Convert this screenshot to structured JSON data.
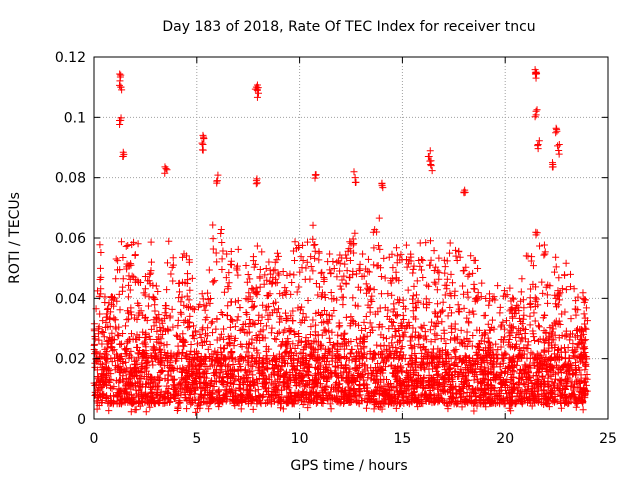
{
  "chart_data": {
    "type": "scatter",
    "title": "Day 183 of 2018, Rate Of TEC Index for receiver tncu",
    "xlabel": "GPS time / hours",
    "ylabel": "ROTI / TECUs",
    "xlim": [
      0,
      25
    ],
    "ylim": [
      0,
      0.12
    ],
    "xticks": [
      0,
      5,
      10,
      15,
      20,
      25
    ],
    "xtick_labels": [
      "0",
      "5",
      "10",
      "15",
      "20",
      "25"
    ],
    "yticks": [
      0,
      0.02,
      0.04,
      0.06,
      0.08,
      0.1,
      0.12
    ],
    "ytick_labels": [
      "0",
      "0.02",
      "0.04",
      "0.06",
      "0.08",
      "0.1",
      "0.12"
    ],
    "grid": true,
    "marker": "+",
    "color": "#ff0000",
    "data_x_range": [
      0,
      24
    ],
    "baseline_band": [
      0.005,
      0.02
    ],
    "notable_peaks": [
      {
        "x": 1.3,
        "y": 0.114
      },
      {
        "x": 1.3,
        "y": 0.11
      },
      {
        "x": 1.3,
        "y": 0.099
      },
      {
        "x": 1.4,
        "y": 0.087
      },
      {
        "x": 3.5,
        "y": 0.083
      },
      {
        "x": 5.3,
        "y": 0.094
      },
      {
        "x": 5.3,
        "y": 0.091
      },
      {
        "x": 6.0,
        "y": 0.079
      },
      {
        "x": 7.9,
        "y": 0.11
      },
      {
        "x": 8.0,
        "y": 0.108
      },
      {
        "x": 7.9,
        "y": 0.079
      },
      {
        "x": 10.8,
        "y": 0.081
      },
      {
        "x": 12.7,
        "y": 0.08
      },
      {
        "x": 14.0,
        "y": 0.078
      },
      {
        "x": 16.3,
        "y": 0.087
      },
      {
        "x": 16.4,
        "y": 0.084
      },
      {
        "x": 18.0,
        "y": 0.075
      },
      {
        "x": 21.5,
        "y": 0.115
      },
      {
        "x": 21.5,
        "y": 0.113
      },
      {
        "x": 21.5,
        "y": 0.102
      },
      {
        "x": 21.6,
        "y": 0.091
      },
      {
        "x": 22.5,
        "y": 0.096
      },
      {
        "x": 22.6,
        "y": 0.089
      },
      {
        "x": 22.3,
        "y": 0.085
      }
    ]
  }
}
